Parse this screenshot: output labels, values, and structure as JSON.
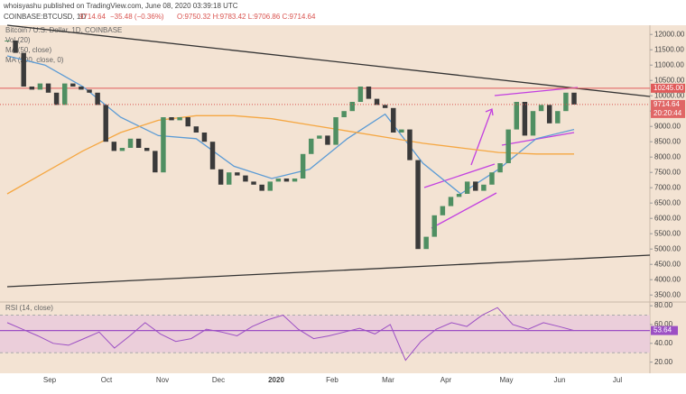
{
  "header": {
    "publisher": "whoisyashu published on TradingView.com, June 08, 2020 03:39:18 UTC",
    "symbol": "COINBASE:BTCUSD, 1D",
    "last": "9714.64",
    "change": "−35.48 (−0.36%)",
    "ohlc": "O:9750.32  H:9783.42  L:9706.86  C:9714.64"
  },
  "legend": [
    "Bitcoin / U.S. Dollar, 1D, COINBASE",
    "Vol (20)",
    "MA (50, close)",
    "MA (200, close, 0)"
  ],
  "chart_data": {
    "type": "candlestick",
    "closes": [
      11800,
      11400,
      10300,
      10200,
      10400,
      10100,
      9700,
      10400,
      10300,
      10200,
      10100,
      9700,
      8500,
      8200,
      8300,
      8600,
      8300,
      8200,
      7500,
      9300,
      9200,
      9300,
      9000,
      8800,
      8500,
      7600,
      7100,
      7500,
      7400,
      7200,
      7100,
      6900,
      7200,
      7300,
      7200,
      7300,
      8100,
      8600,
      8700,
      8400,
      9300,
      9500,
      9800,
      10300,
      9900,
      9700,
      9600,
      8800,
      8900,
      7900,
      5000,
      5400,
      6100,
      6400,
      6700,
      6800,
      7200,
      6900,
      7100,
      7500,
      7800,
      8900,
      9800,
      8700,
      9500,
      9700,
      9100,
      9500,
      10100,
      9714.64
    ],
    "up_color": "#4f8f62",
    "down_color": "#3a3a3a",
    "series": [
      {
        "name": "MA (50, close)",
        "color": "#5b9bd5",
        "values": [
          11300,
          11000,
          10300,
          9300,
          8700,
          8600,
          7700,
          7300,
          7600,
          8600,
          9400,
          7800,
          6800,
          7600,
          8600,
          8900
        ]
      },
      {
        "name": "MA (200, close, 0)",
        "color": "#f5a742",
        "values": [
          6800,
          7500,
          8200,
          8800,
          9200,
          9350,
          9350,
          9250,
          9050,
          8850,
          8650,
          8450,
          8300,
          8150,
          8100,
          8100
        ]
      }
    ],
    "ylim": [
      3300,
      12300
    ],
    "yticks": [
      {
        "value": 12000,
        "label": "12000.00"
      },
      {
        "value": 11500,
        "label": "11500.00"
      },
      {
        "value": 11000,
        "label": "11000.00"
      },
      {
        "value": 10500,
        "label": "10500.00"
      },
      {
        "value": 10000,
        "label": "10000.00"
      },
      {
        "value": 9500,
        "label": "9500.00"
      },
      {
        "value": 9000,
        "label": "9000.00"
      },
      {
        "value": 8500,
        "label": "8500.00"
      },
      {
        "value": 8000,
        "label": "8000.00"
      },
      {
        "value": 7500,
        "label": "7500.00"
      },
      {
        "value": 7000,
        "label": "7000.00"
      },
      {
        "value": 6500,
        "label": "6500.00"
      },
      {
        "value": 6000,
        "label": "6000.00"
      },
      {
        "value": 5500,
        "label": "5500.00"
      },
      {
        "value": 5000,
        "label": "5000.00"
      },
      {
        "value": 4500,
        "label": "4500.00"
      },
      {
        "value": 4000,
        "label": "4000.00"
      },
      {
        "value": 3500,
        "label": "3500.00"
      }
    ],
    "resistance": {
      "value": 10245,
      "label": "10245.00",
      "color": "#e05a5a"
    },
    "price_label": {
      "value": 9714.64,
      "label": "9714.64",
      "countdown": "20:20:44"
    },
    "xlabels": [
      "Sep",
      "Oct",
      "Nov",
      "Dec",
      "2020",
      "Feb",
      "Mar",
      "Apr",
      "May",
      "Jun",
      "Jul"
    ]
  },
  "rsi_data": {
    "type": "line",
    "title": "RSI (14, close)",
    "color": "#9c4fc4",
    "values": [
      62,
      55,
      48,
      40,
      38,
      45,
      52,
      35,
      48,
      62,
      50,
      42,
      45,
      55,
      52,
      48,
      58,
      65,
      70,
      55,
      45,
      48,
      52,
      56,
      50,
      60,
      22,
      42,
      55,
      62,
      58,
      70,
      78,
      60,
      55,
      62,
      58,
      53.64
    ],
    "ylim": [
      12,
      83
    ],
    "yticks": [
      {
        "value": 80,
        "label": "80.00"
      },
      {
        "value": 60,
        "label": "60.00"
      },
      {
        "value": 40,
        "label": "40.00"
      },
      {
        "value": 20,
        "label": "20.00"
      }
    ],
    "band": [
      30,
      70
    ],
    "last": {
      "value": 53.64,
      "label": "53.64"
    }
  }
}
